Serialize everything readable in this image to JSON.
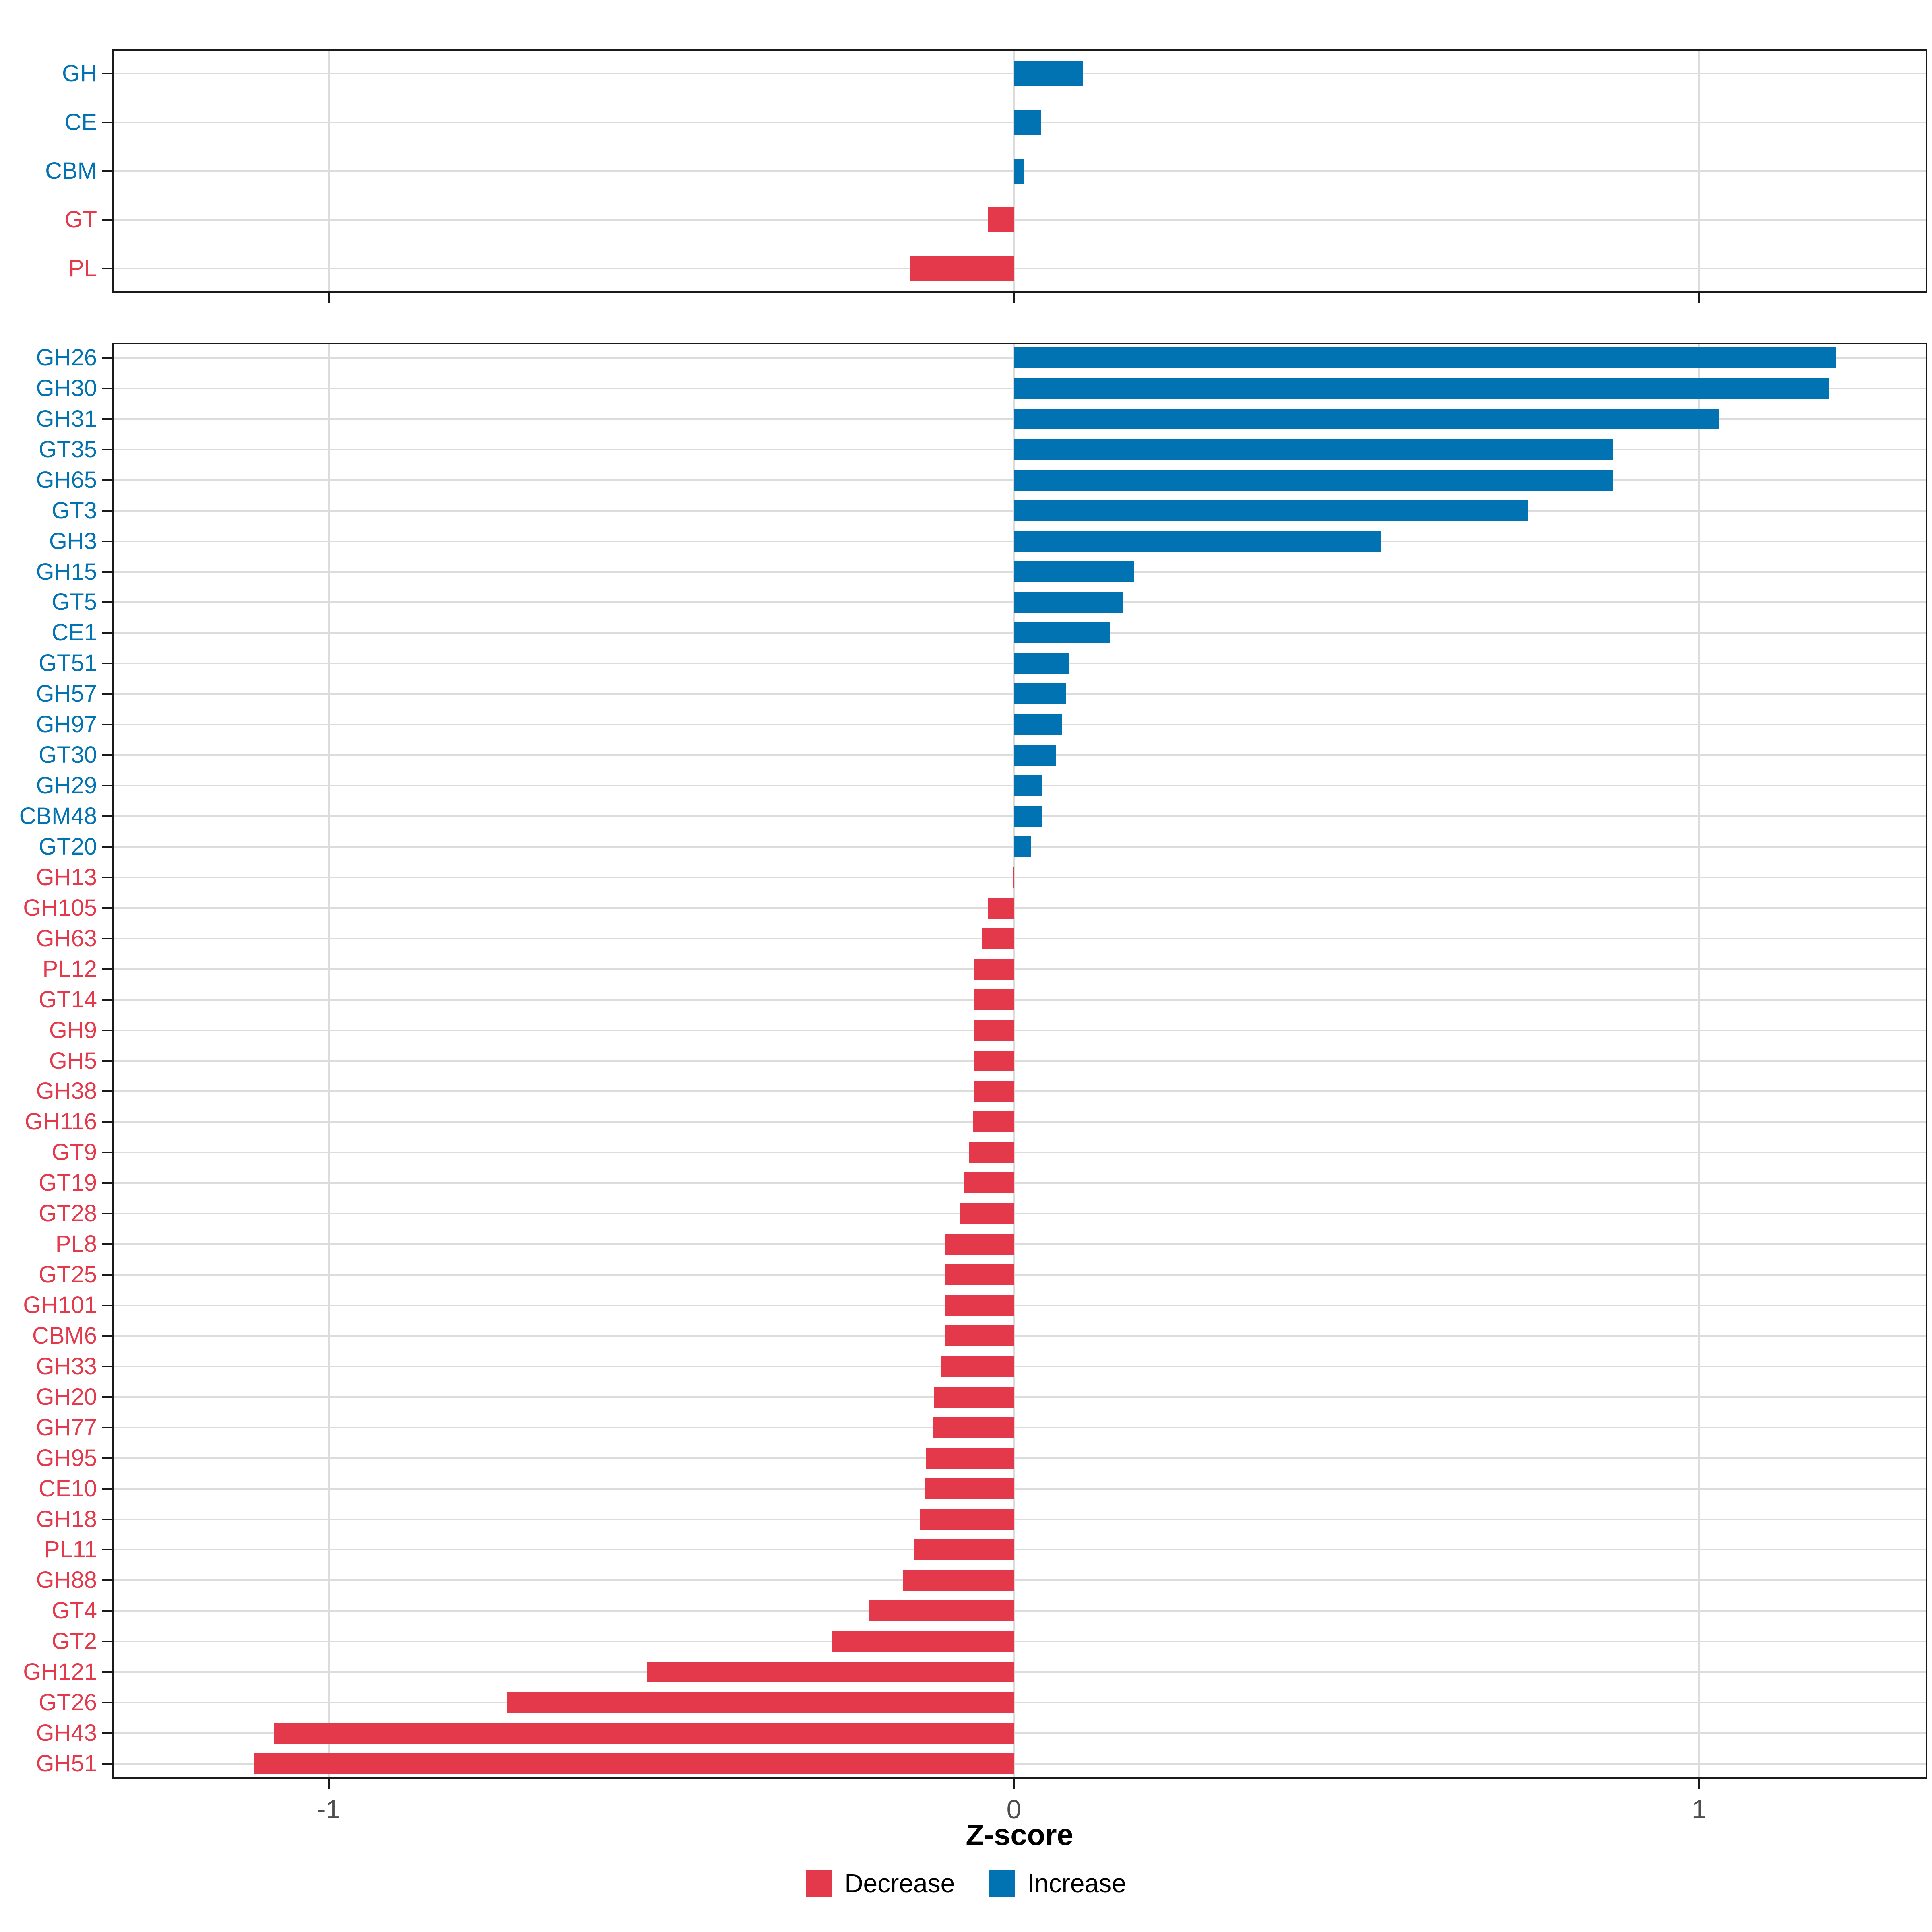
{
  "axis": {
    "title": "Z-score",
    "ticks": [
      -1,
      0,
      1
    ],
    "tick_labels": [
      "-1",
      "0",
      "1"
    ],
    "xmin": -1.316,
    "xmax": 1.333
  },
  "colors": {
    "increase": "#0173B2",
    "decrease": "#E3394B",
    "grid": "#DCDCDC",
    "axis_line": "#1A1A1A",
    "tick_text": "#4D4D4D"
  },
  "legend": [
    {
      "label": "Decrease",
      "color": "#E3394B"
    },
    {
      "label": "Increase",
      "color": "#0173B2"
    }
  ],
  "chart_data": [
    {
      "type": "bar",
      "orientation": "horizontal",
      "name": "cazyme-classes",
      "xlabel": "Z-score",
      "xlim": [
        -1.316,
        1.333
      ],
      "grid": "on",
      "categories": [
        "GH",
        "CE",
        "CBM",
        "GT",
        "PL"
      ],
      "values": [
        0.101,
        0.04,
        0.015,
        -0.038,
        -0.151
      ]
    },
    {
      "type": "bar",
      "orientation": "horizontal",
      "name": "cazyme-families",
      "xlabel": "Z-score",
      "xlim": [
        -1.316,
        1.333
      ],
      "grid": "on",
      "categories": [
        "GH26",
        "GH30",
        "GH31",
        "GT35",
        "GH65",
        "GT3",
        "GH3",
        "GH15",
        "GT5",
        "CE1",
        "GT51",
        "GH57",
        "GH97",
        "GT30",
        "GH29",
        "CBM48",
        "GT20",
        "GH13",
        "GH105",
        "GH63",
        "PL12",
        "GT14",
        "GH9",
        "GH5",
        "GH38",
        "GH116",
        "GT9",
        "GT19",
        "GT28",
        "PL8",
        "GT25",
        "GH101",
        "CBM6",
        "GH33",
        "GH20",
        "GH77",
        "GH95",
        "CE10",
        "GH18",
        "PL11",
        "GH88",
        "GT4",
        "GT2",
        "GH121",
        "GT26",
        "GH43",
        "GH51"
      ],
      "values": [
        1.2,
        1.19,
        1.03,
        0.875,
        0.875,
        0.75,
        0.535,
        0.175,
        0.16,
        0.14,
        0.081,
        0.076,
        0.07,
        0.061,
        0.041,
        0.041,
        0.025,
        -0.001,
        -0.038,
        -0.047,
        -0.058,
        -0.058,
        -0.058,
        -0.059,
        -0.059,
        -0.06,
        -0.066,
        -0.073,
        -0.078,
        -0.1,
        -0.101,
        -0.101,
        -0.101,
        -0.106,
        -0.117,
        -0.118,
        -0.128,
        -0.13,
        -0.137,
        -0.146,
        -0.162,
        -0.212,
        -0.265,
        -0.535,
        -0.74,
        -1.08,
        -1.11
      ]
    }
  ]
}
